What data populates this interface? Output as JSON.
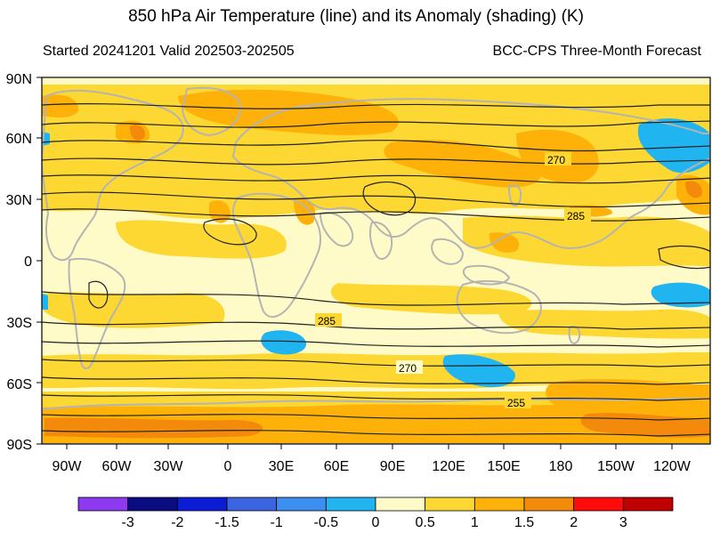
{
  "title": "850 hPa Air Temperature (line) and its Anomaly (shading) (K)",
  "subtitle_left": "Started 20241201  Valid 202503-202505",
  "subtitle_right": "BCC-CPS Three-Month Forecast",
  "map": {
    "lat_labels": [
      "90N",
      "60N",
      "30N",
      "0",
      "30S",
      "60S",
      "90S"
    ],
    "lon_labels": [
      "90W",
      "60W",
      "30W",
      "0",
      "30E",
      "60E",
      "90E",
      "120E",
      "150E",
      "180",
      "150W",
      "120W"
    ],
    "contour_labels": [
      "270",
      "285",
      "285",
      "270",
      "255"
    ],
    "colors": {
      "ocean_base": "#fffbc8",
      "anom_05_1": "#fdd832",
      "anom_1_15": "#fdb109",
      "anom_15_2": "#f48a0c",
      "neg_05_0": "#20b4f0",
      "coast": "#b4b4b4",
      "contour": "#222222"
    }
  },
  "colorbar": {
    "colors": [
      "#8c39f0",
      "#0c0c82",
      "#0c1bd4",
      "#3c64e0",
      "#3c8ef0",
      "#20b4f0",
      "#fffbc8",
      "#fdd832",
      "#fdb109",
      "#f48a0c",
      "#fe0c0c",
      "#c00000"
    ],
    "labels": [
      "-3",
      "-2",
      "-1.5",
      "-1",
      "-0.5",
      "0",
      "0.5",
      "1",
      "1.5",
      "2",
      "3"
    ]
  }
}
